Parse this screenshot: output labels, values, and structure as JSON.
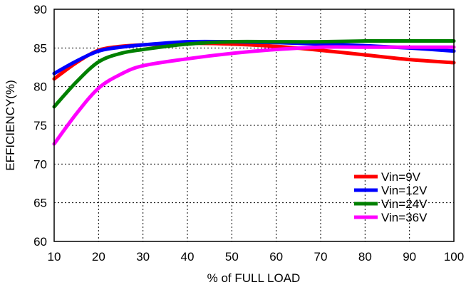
{
  "chart_data": {
    "type": "line",
    "title": "",
    "xlabel": "% of FULL LOAD",
    "ylabel": "EFFICIENCY(%)",
    "xlim": [
      10,
      100
    ],
    "ylim": [
      60,
      90
    ],
    "xticks": [
      10,
      20,
      30,
      40,
      50,
      60,
      70,
      80,
      90,
      100
    ],
    "yticks": [
      60,
      65,
      70,
      75,
      80,
      85,
      90
    ],
    "grid": true,
    "legend_position": "bottom-right",
    "series": [
      {
        "name": "Vin=9V",
        "color": "#ff0000",
        "points": [
          [
            10,
            81.0
          ],
          [
            15,
            83.1
          ],
          [
            20,
            84.7
          ],
          [
            25,
            85.2
          ],
          [
            30,
            85.4
          ],
          [
            40,
            85.6
          ],
          [
            50,
            85.5
          ],
          [
            60,
            85.2
          ],
          [
            70,
            84.7
          ],
          [
            80,
            84.1
          ],
          [
            90,
            83.5
          ],
          [
            100,
            83.1
          ]
        ]
      },
      {
        "name": "Vin=12V",
        "color": "#0000ff",
        "points": [
          [
            10,
            81.7
          ],
          [
            15,
            83.3
          ],
          [
            20,
            84.6
          ],
          [
            25,
            85.1
          ],
          [
            30,
            85.4
          ],
          [
            40,
            85.8
          ],
          [
            50,
            85.8
          ],
          [
            60,
            85.7
          ],
          [
            70,
            85.5
          ],
          [
            80,
            85.3
          ],
          [
            90,
            85.0
          ],
          [
            100,
            84.6
          ]
        ]
      },
      {
        "name": "Vin=24V",
        "color": "#008000",
        "points": [
          [
            10,
            77.4
          ],
          [
            15,
            80.6
          ],
          [
            20,
            83.2
          ],
          [
            25,
            84.3
          ],
          [
            30,
            84.8
          ],
          [
            40,
            85.5
          ],
          [
            50,
            85.8
          ],
          [
            60,
            85.8
          ],
          [
            70,
            85.8
          ],
          [
            80,
            85.9
          ],
          [
            90,
            85.9
          ],
          [
            100,
            85.9
          ]
        ]
      },
      {
        "name": "Vin=36V",
        "color": "#ff00ff",
        "points": [
          [
            10,
            72.6
          ],
          [
            15,
            76.5
          ],
          [
            20,
            79.8
          ],
          [
            25,
            81.6
          ],
          [
            30,
            82.7
          ],
          [
            40,
            83.6
          ],
          [
            50,
            84.3
          ],
          [
            60,
            84.8
          ],
          [
            70,
            85.1
          ],
          [
            80,
            85.1
          ],
          [
            90,
            85.1
          ],
          [
            100,
            85.1
          ]
        ]
      }
    ]
  }
}
